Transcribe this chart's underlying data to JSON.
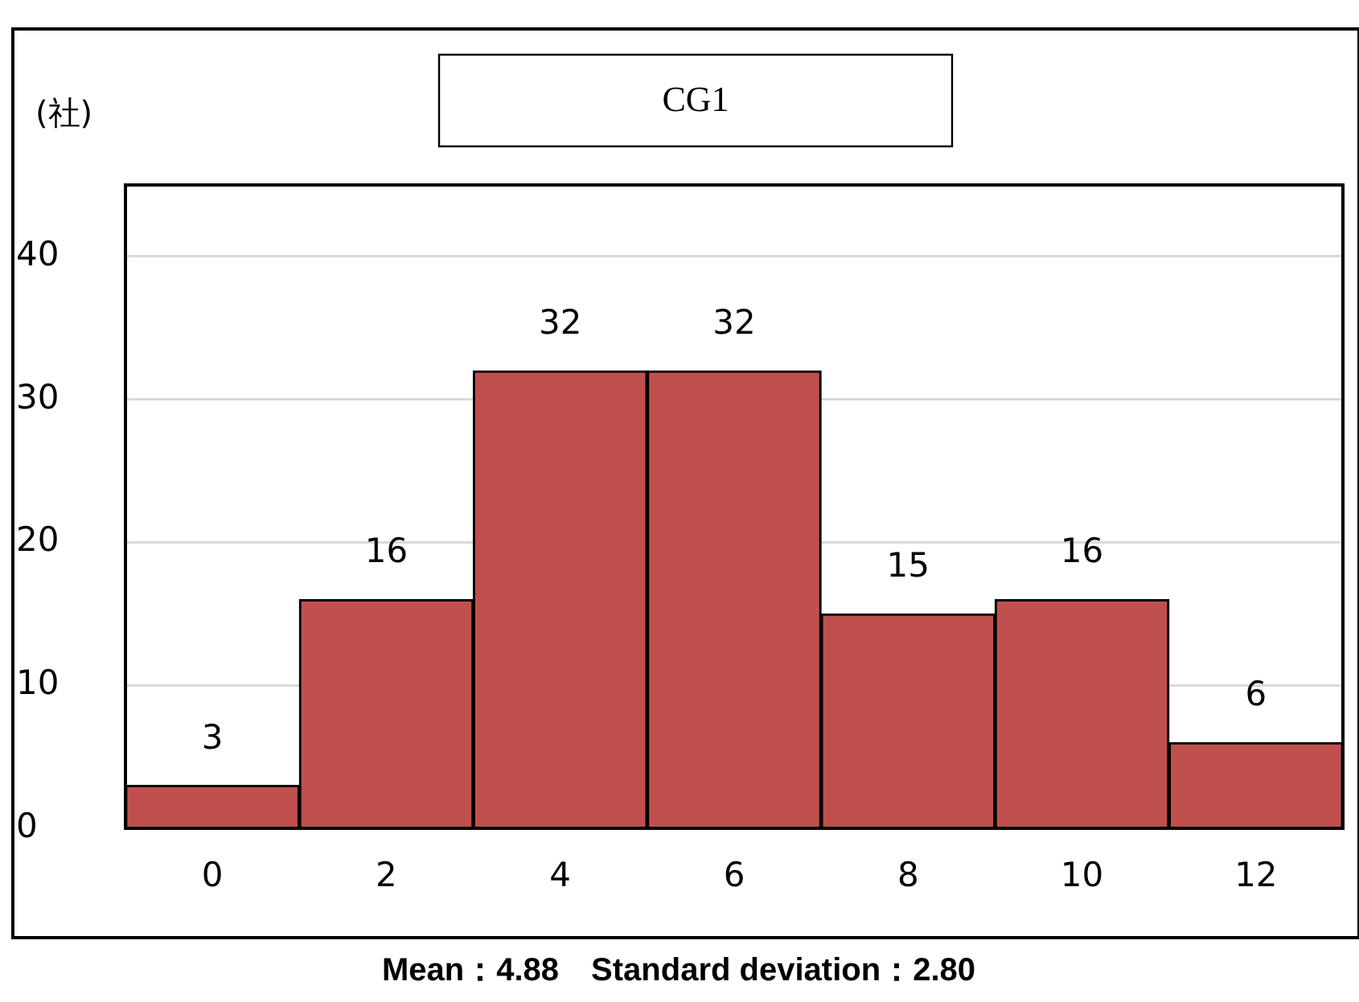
{
  "chart_data": {
    "type": "bar",
    "title": "CG1",
    "ylabel": "(社)",
    "categories": [
      "0",
      "2",
      "4",
      "6",
      "8",
      "10",
      "12"
    ],
    "values": [
      3,
      16,
      32,
      32,
      15,
      16,
      6
    ],
    "color": "#c0504d",
    "ylim": [
      0,
      45
    ],
    "yticks": [
      0,
      10,
      20,
      30,
      40
    ],
    "grid": "y",
    "legend": false,
    "data_labels": true,
    "annotations": [
      "Mean：4.88　Standard deviation：2.80"
    ]
  }
}
